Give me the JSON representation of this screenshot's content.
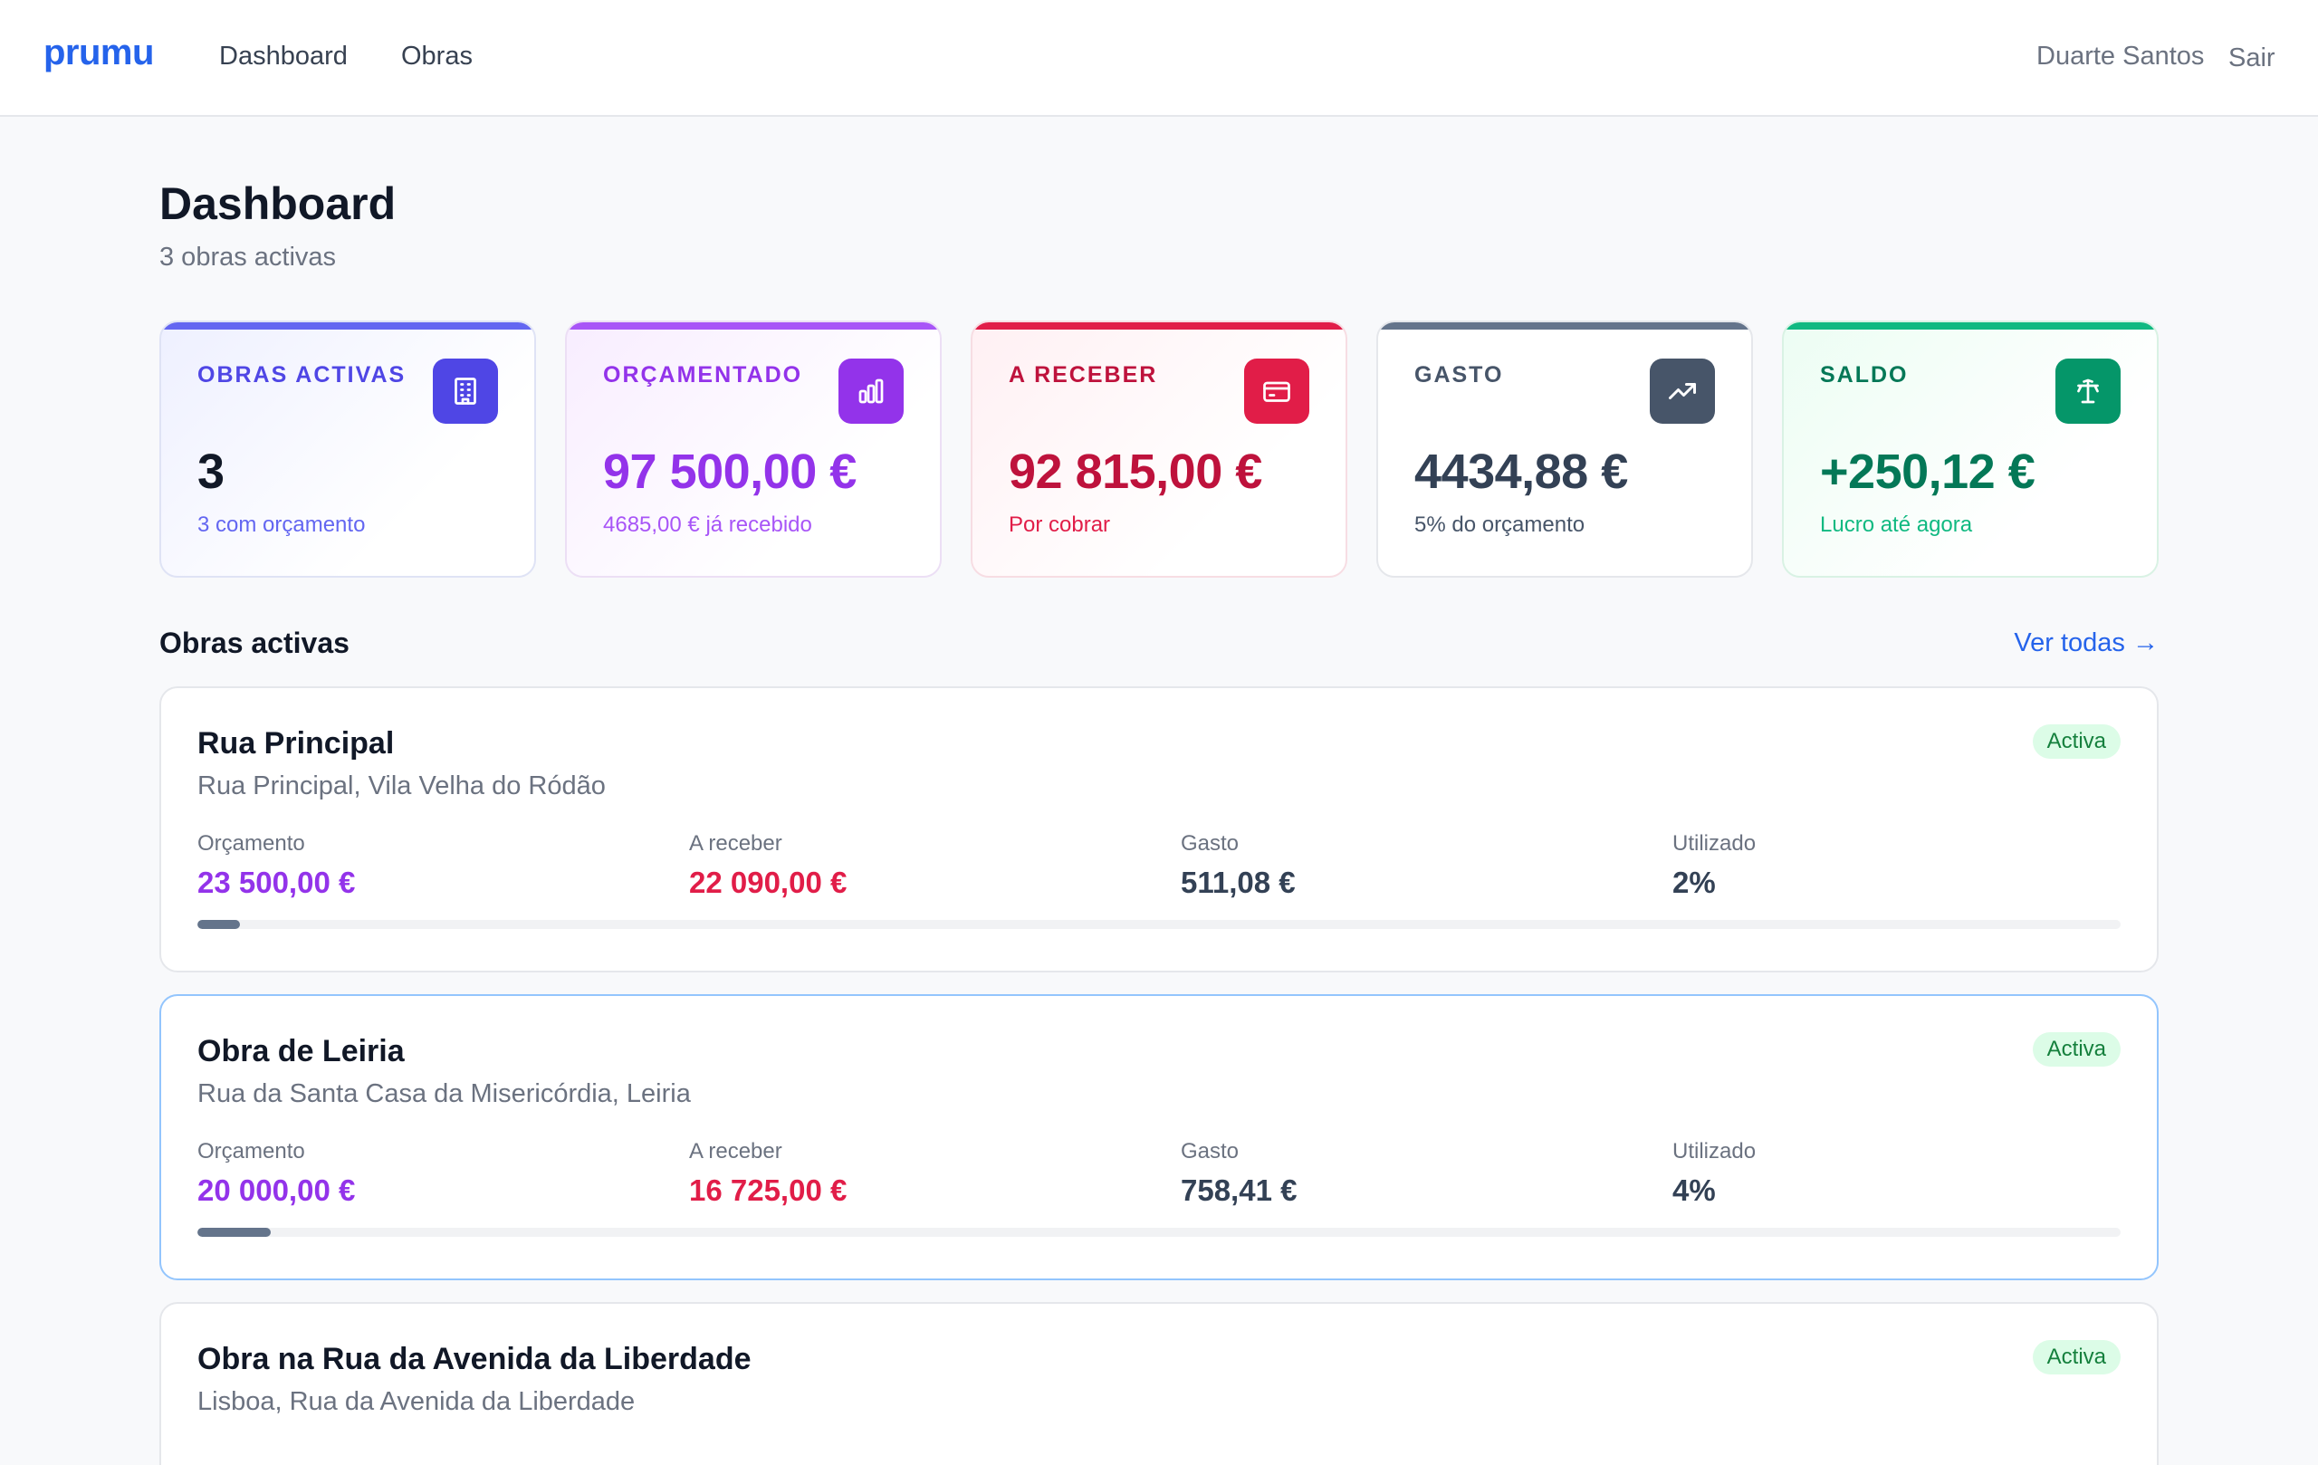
{
  "nav": {
    "brand": "prumu",
    "links": [
      "Dashboard",
      "Obras"
    ],
    "user": "Duarte Santos",
    "logout": "Sair"
  },
  "header": {
    "title": "Dashboard",
    "subtitle": "3 obras activas"
  },
  "stats": [
    {
      "label": "OBRAS ACTIVAS",
      "value": "3",
      "caption": "3 com orçamento",
      "icon": "building-icon",
      "accent": "#6366f1"
    },
    {
      "label": "ORÇAMENTADO",
      "value": "97 500,00 €",
      "caption": "4685,00 € já recebido",
      "icon": "bar-chart-icon",
      "accent": "#a21caf"
    },
    {
      "label": "A RECEBER",
      "value": "92 815,00 €",
      "caption": "Por cobrar",
      "icon": "credit-card-icon",
      "accent": "#e11d48"
    },
    {
      "label": "GASTO",
      "value": "4434,88 €",
      "caption": "5% do orçamento",
      "icon": "trending-up-icon",
      "accent": "#475569"
    },
    {
      "label": "SALDO",
      "value": "+250,12 €",
      "caption": "Lucro até agora",
      "icon": "scale-icon",
      "accent": "#059669"
    }
  ],
  "section": {
    "title": "Obras activas",
    "see_all": "Ver todas →"
  },
  "projects": [
    {
      "name": "Rua Principal",
      "address": "Rua Principal, Vila Velha do Ródão",
      "status": "Activa",
      "metrics": {
        "budget_label": "Orçamento",
        "budget": "23 500,00 €",
        "receivable_label": "A receber",
        "receivable": "22 090,00 €",
        "spent_label": "Gasto",
        "spent": "511,08 €",
        "used_label": "Utilizado",
        "used": "2%"
      },
      "used_fraction": 0.022
    },
    {
      "name": "Obra de Leiria",
      "address": "Rua da Santa Casa da Misericórdia, Leiria",
      "status": "Activa",
      "metrics": {
        "budget_label": "Orçamento",
        "budget": "20 000,00 €",
        "receivable_label": "A receber",
        "receivable": "16 725,00 €",
        "spent_label": "Gasto",
        "spent": "758,41 €",
        "used_label": "Utilizado",
        "used": "4%"
      },
      "used_fraction": 0.038
    },
    {
      "name": "Obra na Rua da Avenida da Liberdade",
      "address": "Lisboa, Rua da Avenida da Liberdade",
      "status": "Activa"
    }
  ],
  "colors": {
    "budget": "#9333ea",
    "receivable": "#e11d48",
    "spent": "#334155",
    "used": "#334155"
  }
}
